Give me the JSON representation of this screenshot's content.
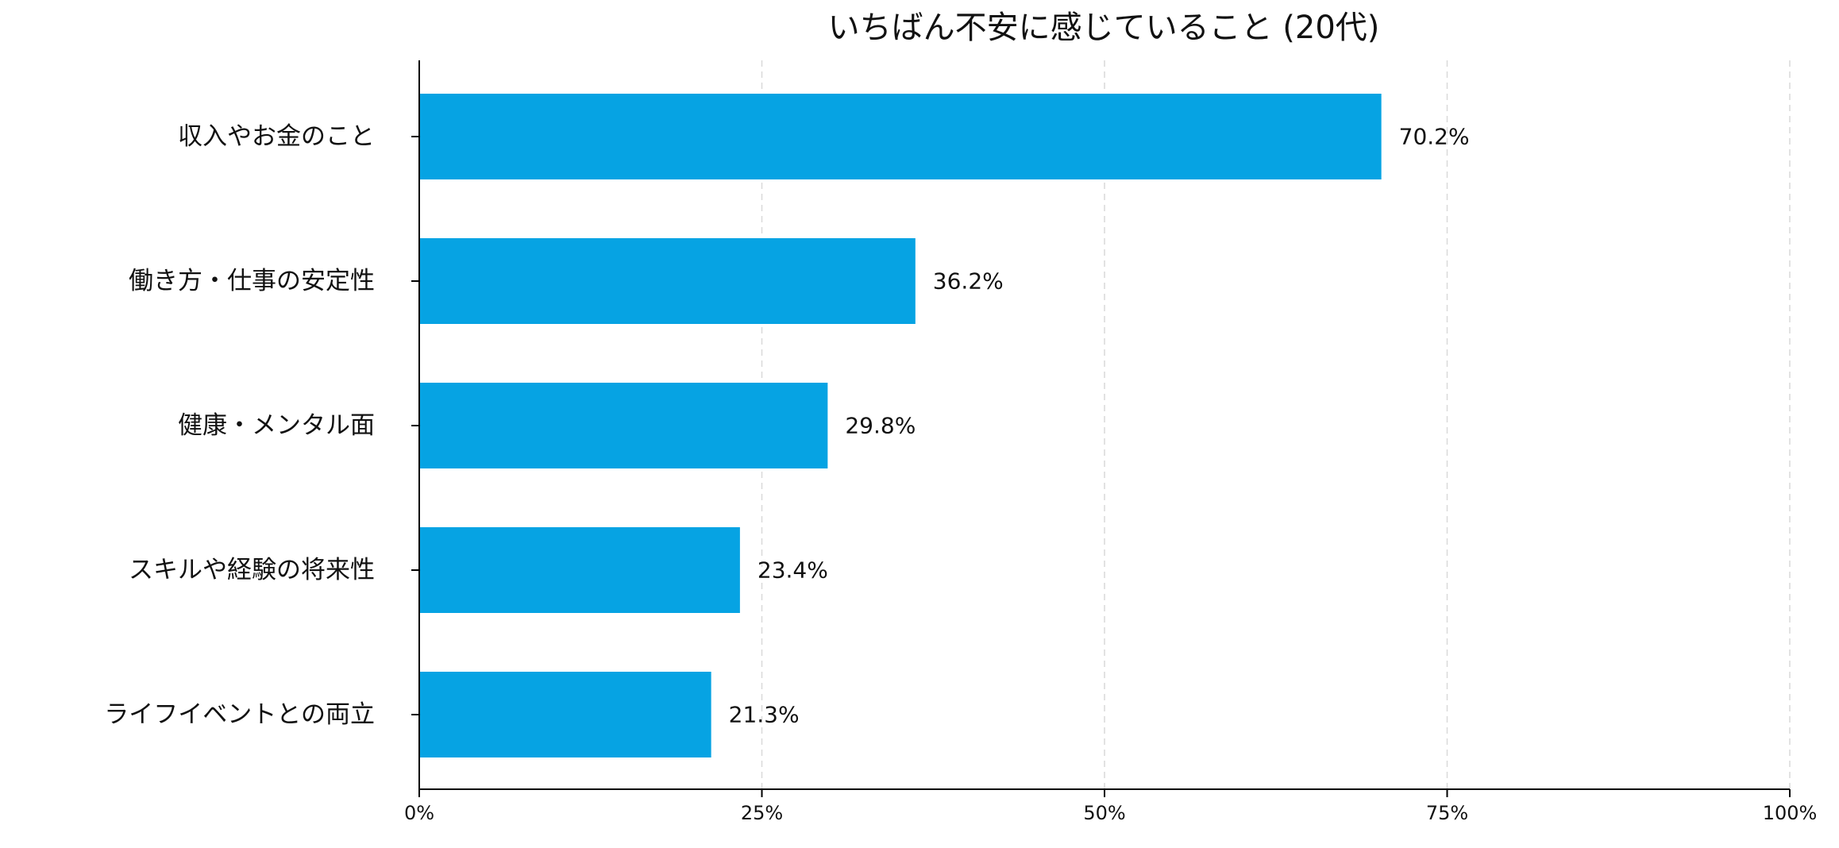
{
  "chart_data": {
    "type": "bar",
    "orientation": "horizontal",
    "title": "いちばん不安に感じていること (20代)",
    "xlabel": "",
    "ylabel": "",
    "categories": [
      "収入やお金のこと",
      "働き方・仕事の安定性",
      "健康・メンタル面",
      "スキルや経験の将来性",
      "ライフイベントとの両立"
    ],
    "values": [
      70.2,
      36.2,
      29.8,
      23.4,
      21.3
    ],
    "value_labels": [
      "70.2%",
      "36.2%",
      "29.8%",
      "23.4%",
      "21.3%"
    ],
    "xlim": [
      0,
      100
    ],
    "x_ticks": [
      0,
      25,
      50,
      75,
      100
    ],
    "x_tick_labels": [
      "0%",
      "25%",
      "50%",
      "75%",
      "100%"
    ],
    "grid": "vertical dashed",
    "legend": "none",
    "colors": {
      "bar": "#06a3e3",
      "axis": "#000000",
      "grid": "#d9d9d9",
      "text": "#111111"
    }
  }
}
